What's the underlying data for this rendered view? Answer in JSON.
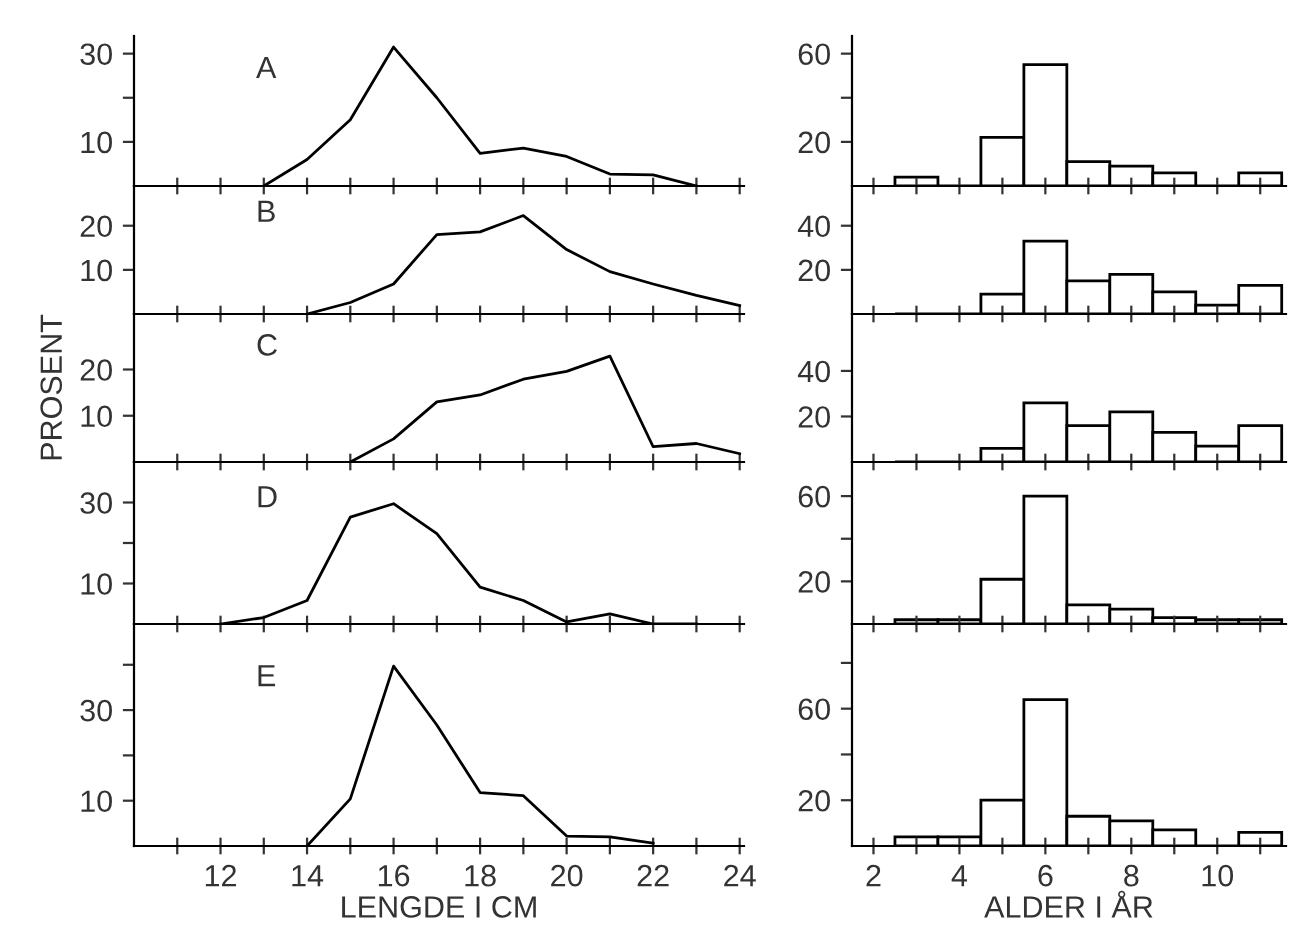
{
  "chart_data": [
    {
      "type": "line",
      "annotations": [
        "A"
      ],
      "x": [
        13,
        14,
        15,
        16,
        17,
        18,
        19,
        20,
        21,
        22,
        23
      ],
      "values": [
        0,
        6,
        15,
        31.5,
        20,
        7.4,
        8.6,
        6.7,
        2.7,
        2.5,
        0
      ],
      "xlim": [
        10,
        24.1
      ],
      "ylim": [
        0,
        34
      ],
      "xticks": [
        {
          "value": 11,
          "label": null
        },
        {
          "value": 12,
          "label": null
        },
        {
          "value": 13,
          "label": null
        },
        {
          "value": 14,
          "label": null
        },
        {
          "value": 15,
          "label": null
        },
        {
          "value": 16,
          "label": null
        },
        {
          "value": 17,
          "label": null
        },
        {
          "value": 18,
          "label": null
        },
        {
          "value": 19,
          "label": null
        },
        {
          "value": 20,
          "label": null
        },
        {
          "value": 21,
          "label": null
        },
        {
          "value": 22,
          "label": null
        },
        {
          "value": 23,
          "label": null
        },
        {
          "value": 24,
          "label": null
        }
      ],
      "yticks": [
        10,
        {
          "value": 20,
          "label": null
        },
        30
      ],
      "tick_labels": "y"
    },
    {
      "type": "histogram",
      "bins": [
        2.5,
        3.5,
        4.5,
        5.5,
        6.5,
        7.5,
        8.5,
        9.5,
        10.5,
        11.5
      ],
      "values": [
        4,
        0,
        22,
        55,
        11,
        9,
        6,
        0,
        6
      ],
      "xlim": [
        1.5,
        11.6
      ],
      "ylim": [
        0,
        68
      ],
      "xticks": [
        {
          "value": 2,
          "label": null
        },
        {
          "value": 3,
          "label": null
        },
        {
          "value": 4,
          "label": null
        },
        {
          "value": 5,
          "label": null
        },
        {
          "value": 6,
          "label": null
        },
        {
          "value": 7,
          "label": null
        },
        {
          "value": 8,
          "label": null
        },
        {
          "value": 9,
          "label": null
        },
        {
          "value": 10,
          "label": null
        },
        {
          "value": 11,
          "label": null
        }
      ],
      "yticks": [
        20,
        {
          "value": 40,
          "label": null
        },
        60
      ],
      "tick_labels": "y"
    },
    {
      "type": "line",
      "annotations": [
        "B"
      ],
      "x": [
        14,
        15,
        16,
        17,
        18,
        19,
        20,
        21,
        22,
        23,
        24
      ],
      "values": [
        0,
        2.6,
        6.8,
        18,
        18.6,
        22.3,
        14.6,
        9.6,
        6.8,
        4.2,
        1.9
      ],
      "xlim": [
        10,
        24.1
      ],
      "ylim": [
        0,
        29
      ],
      "xticks": [
        {
          "value": 11,
          "label": null
        },
        {
          "value": 12,
          "label": null
        },
        {
          "value": 13,
          "label": null
        },
        {
          "value": 14,
          "label": null
        },
        {
          "value": 15,
          "label": null
        },
        {
          "value": 16,
          "label": null
        },
        {
          "value": 17,
          "label": null
        },
        {
          "value": 18,
          "label": null
        },
        {
          "value": 19,
          "label": null
        },
        {
          "value": 20,
          "label": null
        },
        {
          "value": 21,
          "label": null
        },
        {
          "value": 22,
          "label": null
        },
        {
          "value": 23,
          "label": null
        },
        {
          "value": 24,
          "label": null
        }
      ],
      "yticks": [
        10,
        20
      ],
      "tick_labels": "y"
    },
    {
      "type": "histogram",
      "bins": [
        2.5,
        3.5,
        4.5,
        5.5,
        6.5,
        7.5,
        8.5,
        9.5,
        10.5,
        11.5
      ],
      "values": [
        0,
        0,
        9,
        33,
        15,
        18,
        10,
        4,
        13
      ],
      "xlim": [
        1.5,
        11.6
      ],
      "ylim": [
        0,
        58
      ],
      "xticks": [
        {
          "value": 2,
          "label": null
        },
        {
          "value": 3,
          "label": null
        },
        {
          "value": 4,
          "label": null
        },
        {
          "value": 5,
          "label": null
        },
        {
          "value": 6,
          "label": null
        },
        {
          "value": 7,
          "label": null
        },
        {
          "value": 8,
          "label": null
        },
        {
          "value": 9,
          "label": null
        },
        {
          "value": 10,
          "label": null
        },
        {
          "value": 11,
          "label": null
        }
      ],
      "yticks": [
        20,
        40
      ],
      "tick_labels": "y"
    },
    {
      "type": "line",
      "annotations": [
        "C"
      ],
      "ylabel": "PROSENT",
      "x": [
        15,
        16,
        17,
        18,
        19,
        20,
        21,
        22,
        23,
        24
      ],
      "values": [
        0,
        5,
        13,
        14.5,
        17.9,
        19.6,
        22.9,
        3.3,
        4,
        1.8
      ],
      "xlim": [
        10,
        24.1
      ],
      "ylim": [
        0,
        32
      ],
      "xticks": [
        {
          "value": 11,
          "label": null
        },
        {
          "value": 12,
          "label": null
        },
        {
          "value": 13,
          "label": null
        },
        {
          "value": 14,
          "label": null
        },
        {
          "value": 15,
          "label": null
        },
        {
          "value": 16,
          "label": null
        },
        {
          "value": 17,
          "label": null
        },
        {
          "value": 18,
          "label": null
        },
        {
          "value": 19,
          "label": null
        },
        {
          "value": 20,
          "label": null
        },
        {
          "value": 21,
          "label": null
        },
        {
          "value": 22,
          "label": null
        },
        {
          "value": 23,
          "label": null
        },
        {
          "value": 24,
          "label": null
        }
      ],
      "yticks": [
        10,
        20
      ],
      "tick_labels": "y"
    },
    {
      "type": "histogram",
      "bins": [
        2.5,
        3.5,
        4.5,
        5.5,
        6.5,
        7.5,
        8.5,
        9.5,
        10.5,
        11.5
      ],
      "values": [
        0,
        0,
        6,
        26,
        16,
        22,
        13,
        7,
        16
      ],
      "xlim": [
        1.5,
        11.6
      ],
      "ylim": [
        0,
        65
      ],
      "xticks": [
        {
          "value": 2,
          "label": null
        },
        {
          "value": 3,
          "label": null
        },
        {
          "value": 4,
          "label": null
        },
        {
          "value": 5,
          "label": null
        },
        {
          "value": 6,
          "label": null
        },
        {
          "value": 7,
          "label": null
        },
        {
          "value": 8,
          "label": null
        },
        {
          "value": 9,
          "label": null
        },
        {
          "value": 10,
          "label": null
        },
        {
          "value": 11,
          "label": null
        }
      ],
      "yticks": [
        20,
        40
      ],
      "tick_labels": "y"
    },
    {
      "type": "line",
      "annotations": [
        "D"
      ],
      "x": [
        12,
        13,
        14,
        15,
        16,
        17,
        18,
        19,
        20,
        21,
        22,
        23
      ],
      "values": [
        0,
        1.6,
        5.8,
        26.4,
        29.7,
        22.3,
        9.1,
        5.8,
        0.5,
        2.5,
        0,
        0
      ],
      "xlim": [
        10,
        24.1
      ],
      "ylim": [
        0,
        40
      ],
      "xticks": [
        {
          "value": 11,
          "label": null
        },
        {
          "value": 12,
          "label": null
        },
        {
          "value": 13,
          "label": null
        },
        {
          "value": 14,
          "label": null
        },
        {
          "value": 15,
          "label": null
        },
        {
          "value": 16,
          "label": null
        },
        {
          "value": 17,
          "label": null
        },
        {
          "value": 18,
          "label": null
        },
        {
          "value": 19,
          "label": null
        },
        {
          "value": 20,
          "label": null
        },
        {
          "value": 21,
          "label": null
        },
        {
          "value": 22,
          "label": null
        },
        {
          "value": 23,
          "label": null
        },
        {
          "value": 24,
          "label": null
        }
      ],
      "yticks": [
        10,
        {
          "value": 20,
          "label": null
        },
        30
      ],
      "tick_labels": "y"
    },
    {
      "type": "histogram",
      "bins": [
        2.5,
        3.5,
        4.5,
        5.5,
        6.5,
        7.5,
        8.5,
        9.5,
        10.5,
        11.5
      ],
      "values": [
        2,
        2,
        21,
        60,
        9,
        7,
        3,
        2,
        2
      ],
      "xlim": [
        1.5,
        11.6
      ],
      "ylim": [
        0,
        76
      ],
      "xticks": [
        {
          "value": 2,
          "label": null
        },
        {
          "value": 3,
          "label": null
        },
        {
          "value": 4,
          "label": null
        },
        {
          "value": 5,
          "label": null
        },
        {
          "value": 6,
          "label": null
        },
        {
          "value": 7,
          "label": null
        },
        {
          "value": 8,
          "label": null
        },
        {
          "value": 9,
          "label": null
        },
        {
          "value": 10,
          "label": null
        },
        {
          "value": 11,
          "label": null
        }
      ],
      "yticks": [
        20,
        {
          "value": 40,
          "label": null
        },
        60
      ],
      "tick_labels": "y"
    },
    {
      "type": "line",
      "annotations": [
        "E"
      ],
      "xlabel": "LENGDE I CM",
      "x": [
        14,
        15,
        16,
        17,
        18,
        19,
        20,
        21,
        22
      ],
      "values": [
        0,
        10.4,
        39.7,
        26.7,
        11.8,
        11.1,
        2.2,
        2,
        0.6
      ],
      "xlim": [
        10,
        24.1
      ],
      "ylim": [
        0,
        49
      ],
      "xticks": [
        {
          "value": 11,
          "label": null
        },
        12,
        {
          "value": 13,
          "label": null
        },
        14,
        {
          "value": 15,
          "label": null
        },
        16,
        {
          "value": 17,
          "label": null
        },
        18,
        {
          "value": 19,
          "label": null
        },
        20,
        {
          "value": 21,
          "label": null
        },
        22,
        {
          "value": 23,
          "label": null
        },
        24
      ],
      "yticks": [
        10,
        {
          "value": 20,
          "label": null
        },
        30,
        {
          "value": 40,
          "label": null
        }
      ]
    },
    {
      "type": "histogram",
      "xlabel": "ALDER I ÅR",
      "bins": [
        2.5,
        3.5,
        4.5,
        5.5,
        6.5,
        7.5,
        8.5,
        9.5,
        10.5,
        11.5
      ],
      "values": [
        4,
        4,
        20,
        64,
        13,
        11,
        7,
        0,
        6
      ],
      "xlim": [
        1.5,
        11.6
      ],
      "ylim": [
        0,
        97
      ],
      "xticks": [
        2,
        {
          "value": 3,
          "label": null
        },
        4,
        {
          "value": 5,
          "label": null
        },
        6,
        {
          "value": 7,
          "label": null
        },
        8,
        {
          "value": 9,
          "label": null
        },
        10,
        {
          "value": 11,
          "label": null
        }
      ],
      "yticks": [
        20,
        {
          "value": 40,
          "label": null
        },
        60,
        {
          "value": 80,
          "label": null
        }
      ]
    }
  ]
}
